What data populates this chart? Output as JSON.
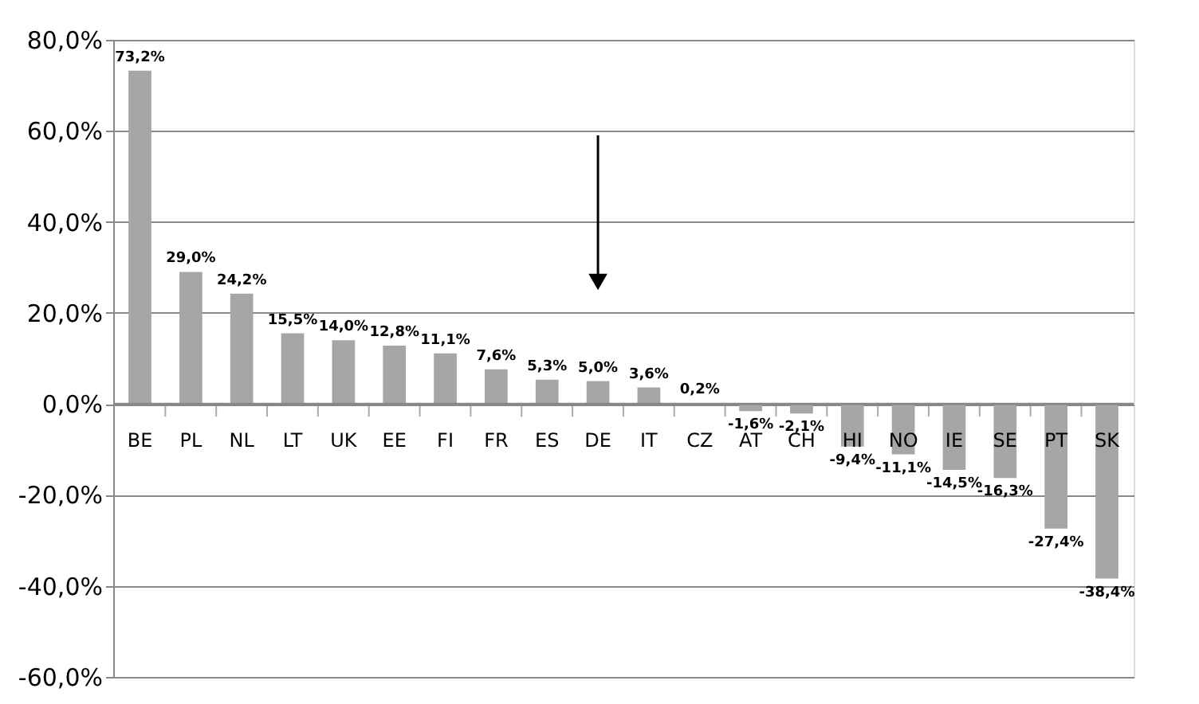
{
  "chart_data": {
    "type": "bar",
    "categories": [
      "BE",
      "PL",
      "NL",
      "LT",
      "UK",
      "EE",
      "FI",
      "FR",
      "ES",
      "DE",
      "IT",
      "CZ",
      "AT",
      "CH",
      "HI",
      "NO",
      "IE",
      "SE",
      "PT",
      "SK"
    ],
    "values": [
      73.2,
      29.0,
      24.2,
      15.5,
      14.0,
      12.8,
      11.1,
      7.6,
      5.3,
      5.0,
      3.6,
      0.2,
      -1.6,
      -2.1,
      -9.4,
      -11.1,
      -14.5,
      -16.3,
      -27.4,
      -38.4
    ],
    "value_labels": [
      "73,2%",
      "29,0%",
      "24,2%",
      "15,5%",
      "14,0%",
      "12,8%",
      "11,1%",
      "7,6%",
      "5,3%",
      "5,0%",
      "3,6%",
      "0,2%",
      "-1,6%",
      "-2,1%",
      "-9,4%",
      "-11,1%",
      "-14,5%",
      "-16,3%",
      "-27,4%",
      "-38,4%"
    ],
    "color": "#a6a6a6",
    "ylim": [
      -60,
      80
    ],
    "yticks": [
      {
        "value": -60,
        "label": "-60,0%"
      },
      {
        "value": -40,
        "label": "-40,0%"
      },
      {
        "value": -20,
        "label": "-20,0%"
      },
      {
        "value": 0,
        "label": "0,0%"
      },
      {
        "value": 20,
        "label": "20,0%"
      },
      {
        "value": 40,
        "label": "40,0%"
      },
      {
        "value": 60,
        "label": "60,0%"
      },
      {
        "value": 80,
        "label": "80,0%"
      }
    ],
    "grid": "y"
  }
}
